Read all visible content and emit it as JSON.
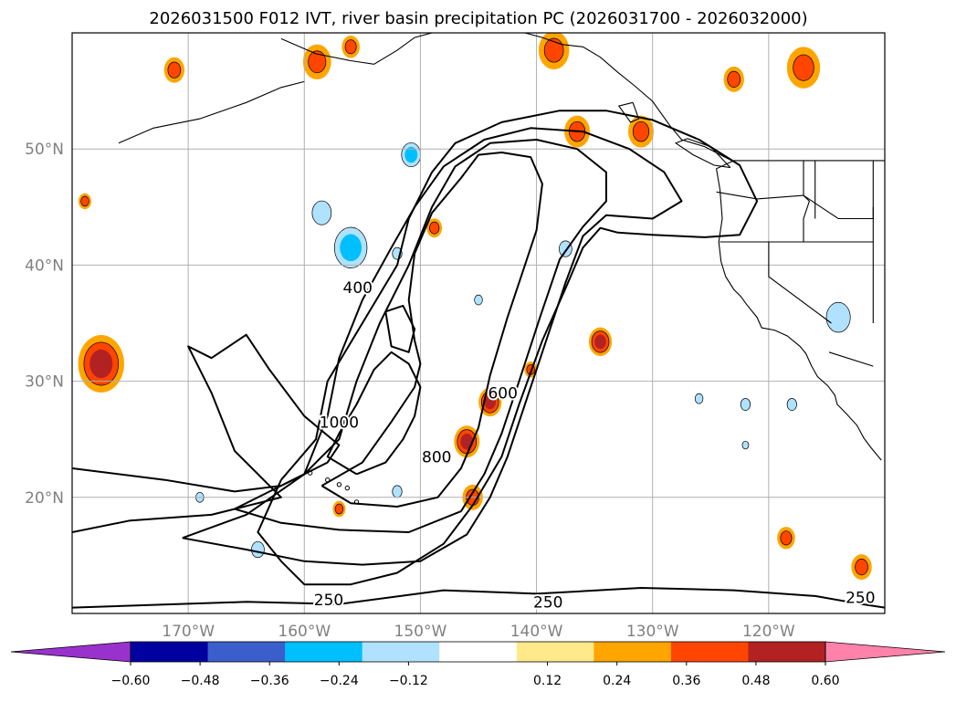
{
  "chart_data": {
    "type": "contour-map",
    "title": "2026031500 F012 IVT, river basin precipitation PC (2026031700 - 2026032000)",
    "map": {
      "lon_range": [
        -180,
        -110
      ],
      "lat_range": [
        10,
        60
      ],
      "lon_ticks": [
        -170,
        -160,
        -150,
        -140,
        -130,
        -120
      ],
      "lon_tick_labels": [
        "170°W",
        "160°W",
        "150°W",
        "140°W",
        "130°W",
        "120°W"
      ],
      "lat_ticks": [
        20,
        30,
        40,
        50
      ],
      "lat_tick_labels": [
        "20°N",
        "30°N",
        "40°N",
        "50°N"
      ],
      "grid": true
    },
    "ivt_contours": {
      "levels": [
        250,
        400,
        600,
        800,
        1000
      ],
      "labels": [
        {
          "text": "250",
          "lon": -157.9,
          "lat": 11.1
        },
        {
          "text": "250",
          "lon": -139.0,
          "lat": 10.9
        },
        {
          "text": "250",
          "lon": -112.1,
          "lat": 11.3
        },
        {
          "text": "400",
          "lon": -155.4,
          "lat": 38.0
        },
        {
          "text": "600",
          "lon": -142.9,
          "lat": 28.9
        },
        {
          "text": "800",
          "lon": -148.6,
          "lat": 23.4
        },
        {
          "text": "1000",
          "lon": -157.0,
          "lat": 26.4
        }
      ]
    },
    "pc_colorbar": {
      "boundaries": [
        -0.72,
        -0.6,
        -0.48,
        -0.36,
        -0.24,
        -0.12,
        0.12,
        0.24,
        0.36,
        0.48,
        0.6,
        0.72
      ],
      "tick_values": [
        -0.6,
        -0.48,
        -0.36,
        -0.24,
        -0.12,
        0.12,
        0.24,
        0.36,
        0.48,
        0.6
      ],
      "tick_labels": [
        "−0.60",
        "−0.48",
        "−0.36",
        "−0.24",
        "−0.12",
        "0.12",
        "0.24",
        "0.36",
        "0.48",
        "0.60"
      ],
      "colors": [
        "#0000a0",
        "#3a5fcd",
        "#00bfff",
        "#b0e2ff",
        "#ffffff",
        "#ffe98a",
        "#ffa500",
        "#ff4500",
        "#b22222"
      ],
      "under_color": "#9932cc",
      "over_color": "#ff82ab",
      "extend": "both"
    },
    "pc_blobs": [
      {
        "lon": -177.5,
        "lat": 31.5,
        "r": 1.8,
        "value": 0.4
      },
      {
        "lon": -178.9,
        "lat": 45.5,
        "r": 0.5,
        "value": 0.3
      },
      {
        "lon": -176.0,
        "lat": 1.0,
        "r": 0.0,
        "value": 0.0
      },
      {
        "lon": -171.2,
        "lat": 56.8,
        "r": 0.8,
        "value": 0.3
      },
      {
        "lon": -158.9,
        "lat": 57.5,
        "r": 1.1,
        "value": 0.3
      },
      {
        "lon": -156.0,
        "lat": 58.8,
        "r": 0.7,
        "value": 0.28
      },
      {
        "lon": -150.8,
        "lat": 49.5,
        "r": 1.0,
        "value": -0.42
      },
      {
        "lon": -158.5,
        "lat": 44.5,
        "r": 1.2,
        "value": -0.3
      },
      {
        "lon": -156.0,
        "lat": 41.5,
        "r": 1.7,
        "value": -0.4
      },
      {
        "lon": -152.0,
        "lat": 41.0,
        "r": 0.6,
        "value": -0.3
      },
      {
        "lon": -148.8,
        "lat": 43.2,
        "r": 0.6,
        "value": 0.3
      },
      {
        "lon": -145.0,
        "lat": 37.0,
        "r": 0.5,
        "value": -0.3
      },
      {
        "lon": -138.5,
        "lat": 58.5,
        "r": 1.2,
        "value": 0.35
      },
      {
        "lon": -136.5,
        "lat": 51.5,
        "r": 1.0,
        "value": 0.3
      },
      {
        "lon": -131.0,
        "lat": 51.5,
        "r": 1.0,
        "value": 0.3
      },
      {
        "lon": -137.5,
        "lat": 41.4,
        "r": 0.8,
        "value": -0.3
      },
      {
        "lon": -134.5,
        "lat": 33.4,
        "r": 0.9,
        "value": 0.4
      },
      {
        "lon": -144.0,
        "lat": 28.2,
        "r": 0.9,
        "value": 0.38
      },
      {
        "lon": -146.0,
        "lat": 24.8,
        "r": 1.0,
        "value": 0.4
      },
      {
        "lon": -145.5,
        "lat": 20.0,
        "r": 0.8,
        "value": 0.3
      },
      {
        "lon": -140.5,
        "lat": 31.0,
        "r": 0.5,
        "value": 0.3
      },
      {
        "lon": -126.0,
        "lat": 28.5,
        "r": 0.5,
        "value": -0.3
      },
      {
        "lon": -122.0,
        "lat": 28.0,
        "r": 0.6,
        "value": -0.25
      },
      {
        "lon": -122.0,
        "lat": 24.5,
        "r": 0.4,
        "value": -0.25
      },
      {
        "lon": -118.0,
        "lat": 28.0,
        "r": 0.6,
        "value": -0.3
      },
      {
        "lon": -114.0,
        "lat": 35.5,
        "r": 1.5,
        "value": -0.35
      },
      {
        "lon": -117.0,
        "lat": 57.0,
        "r": 1.3,
        "value": 0.3
      },
      {
        "lon": -123.0,
        "lat": 56.0,
        "r": 0.8,
        "value": 0.3
      },
      {
        "lon": -164.0,
        "lat": 15.5,
        "r": 0.8,
        "value": -0.3
      },
      {
        "lon": -169.0,
        "lat": 20.0,
        "r": 0.5,
        "value": -0.25
      },
      {
        "lon": -157.0,
        "lat": 19.0,
        "r": 0.5,
        "value": 0.3
      },
      {
        "lon": -152.0,
        "lat": 20.5,
        "r": 0.6,
        "value": -0.3
      },
      {
        "lon": -118.5,
        "lat": 16.5,
        "r": 0.7,
        "value": 0.35
      },
      {
        "lon": -112.0,
        "lat": 14.0,
        "r": 0.8,
        "value": 0.35
      }
    ]
  }
}
